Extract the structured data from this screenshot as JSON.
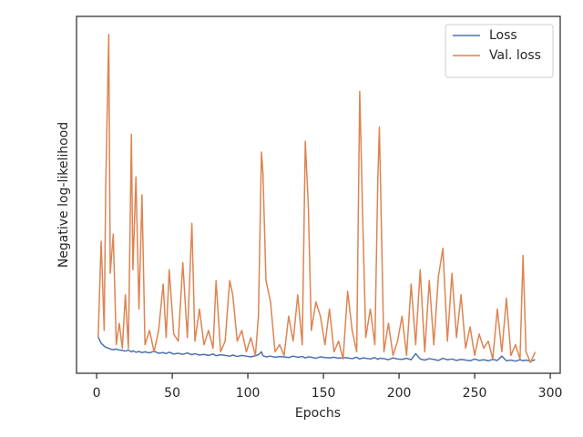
{
  "chart_data": {
    "type": "line",
    "x_label": "Epochs",
    "y_label": "Negative log-likelihood",
    "x": [
      1,
      3,
      5,
      6,
      8,
      9,
      11,
      13,
      15,
      17,
      19,
      21,
      23,
      24,
      26,
      28,
      30,
      32,
      35,
      38,
      41,
      44,
      46,
      48,
      51,
      54,
      57,
      60,
      63,
      65,
      68,
      71,
      74,
      77,
      79,
      82,
      85,
      88,
      90,
      93,
      96,
      99,
      102,
      105,
      107,
      109,
      110,
      112,
      115,
      118,
      121,
      124,
      127,
      130,
      133,
      136,
      138,
      140,
      142,
      145,
      148,
      151,
      154,
      157,
      160,
      163,
      166,
      169,
      172,
      174,
      176,
      178,
      181,
      184,
      186,
      187,
      190,
      193,
      196,
      199,
      202,
      205,
      208,
      211,
      214,
      217,
      220,
      223,
      226,
      229,
      232,
      235,
      238,
      241,
      244,
      247,
      250,
      253,
      256,
      259,
      262,
      265,
      268,
      271,
      274,
      277,
      280,
      282,
      284,
      287,
      290
    ],
    "series": [
      {
        "name": "Loss",
        "color": "#4c72b0",
        "values": [
          10.2,
          8.4,
          7.6,
          7.3,
          7.0,
          6.8,
          6.6,
          6.8,
          6.5,
          6.4,
          6.2,
          6.5,
          6.0,
          6.3,
          5.9,
          6.1,
          5.8,
          6.0,
          5.7,
          6.2,
          5.6,
          5.8,
          5.5,
          5.9,
          5.4,
          5.6,
          5.3,
          5.7,
          5.2,
          5.5,
          5.1,
          5.3,
          5.0,
          5.4,
          4.9,
          5.2,
          5.0,
          4.8,
          5.1,
          4.7,
          5.0,
          4.8,
          4.6,
          4.9,
          5.2,
          6.0,
          4.9,
          4.6,
          4.8,
          4.5,
          4.7,
          4.6,
          4.4,
          4.8,
          4.5,
          4.7,
          4.3,
          4.6,
          4.5,
          4.2,
          4.6,
          4.4,
          4.3,
          4.5,
          4.2,
          4.4,
          4.3,
          4.1,
          4.5,
          4.0,
          4.3,
          4.2,
          4.0,
          4.4,
          3.9,
          4.2,
          4.1,
          3.8,
          4.3,
          4.0,
          3.9,
          4.2,
          3.8,
          5.5,
          4.0,
          3.7,
          4.1,
          3.9,
          3.6,
          4.2,
          3.8,
          4.0,
          3.6,
          3.9,
          3.7,
          3.5,
          4.0,
          3.6,
          3.8,
          3.5,
          3.9,
          3.6,
          4.8,
          3.5,
          3.7,
          3.4,
          3.8,
          3.5,
          3.7,
          3.4,
          3.8
        ]
      },
      {
        "name": "Val. loss",
        "color": "#dd8452",
        "values": [
          10,
          37,
          12,
          52,
          95,
          28,
          39,
          8,
          14,
          7,
          22,
          7,
          67,
          29,
          55,
          18,
          50,
          8,
          12,
          6,
          12,
          25,
          10,
          29,
          11,
          9,
          31,
          10,
          42,
          9,
          18,
          8,
          12,
          7,
          26,
          6,
          9,
          26,
          22,
          9,
          12,
          6,
          10,
          5,
          16,
          62,
          56,
          26,
          20,
          6,
          8,
          5,
          16,
          9,
          22,
          8,
          65,
          47,
          12,
          20,
          16,
          8,
          18,
          6,
          9,
          4,
          23,
          12,
          6,
          79,
          43,
          10,
          18,
          8,
          55,
          69,
          6,
          14,
          5,
          9,
          16,
          5,
          25,
          8,
          29,
          6,
          26,
          8,
          27,
          35,
          9,
          28,
          10,
          22,
          7,
          13,
          5,
          11,
          7,
          9,
          4,
          18,
          6,
          21,
          5,
          8,
          4,
          33,
          6,
          3,
          6
        ]
      }
    ],
    "xlim": [
      -13.3,
      306.6
    ],
    "ylim": [
      0,
      100
    ],
    "xticks": [
      0,
      50,
      100,
      150,
      200,
      250,
      300
    ],
    "legend": "upper right",
    "grid": false
  }
}
